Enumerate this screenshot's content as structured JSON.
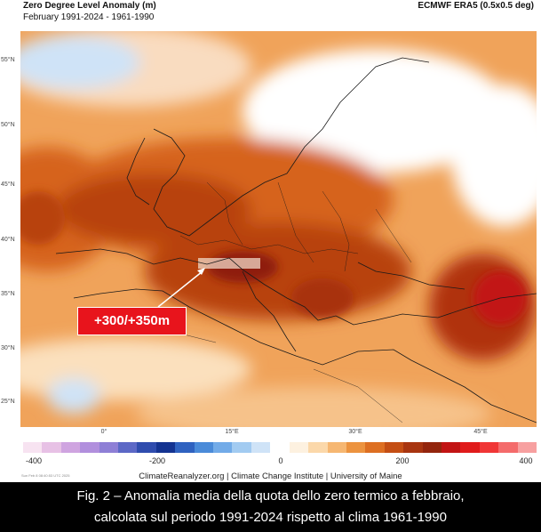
{
  "header": {
    "title": "Zero Degree Level Anomaly (m)",
    "subtitle": "February 1991-2024 - 1961-1990",
    "source": "ECMWF ERA5 (0.5x0.5 deg)"
  },
  "map": {
    "lat_labels": [
      "55°N",
      "50°N",
      "45°N",
      "40°N",
      "35°N",
      "30°N",
      "25°N"
    ],
    "lon_labels": [
      "0°",
      "15°E",
      "30°E",
      "45°E"
    ],
    "annotation": "+300/+350m"
  },
  "colorbar": {
    "ticks": [
      "-400",
      "-200",
      "0",
      "200",
      "400"
    ],
    "colors": [
      "#f7e3f1",
      "#e7c1e5",
      "#cfa4e0",
      "#b18fdd",
      "#8e7fd6",
      "#5c68c6",
      "#2f4cae",
      "#143391",
      "#2f62c0",
      "#4a8bd9",
      "#72abe8",
      "#a2cbf1",
      "#cfe3f7",
      "#ffffff",
      "#fdf1e0",
      "#fbd8aa",
      "#f6b772",
      "#ec933f",
      "#dd6f22",
      "#c44e14",
      "#a83510",
      "#93250d",
      "#c21414",
      "#e01b1b",
      "#f03636",
      "#f46b6b",
      "#f7a0a0"
    ]
  },
  "credit": "ClimateReanalyzer.org | Climate Change Institute | University of Maine",
  "stamp": "Sun Feb 8 08:40:53 UTC 2025",
  "caption": {
    "line1": "Fig. 2 – Anomalia media della quota dello zero termico a febbraio,",
    "line2": "calcolata sul periodo 1991-2024 rispetto al clima 1961-1990"
  }
}
